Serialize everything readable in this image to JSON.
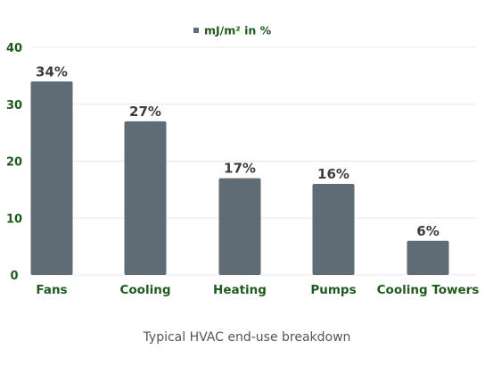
{
  "chart_data": {
    "type": "bar",
    "categories": [
      "Fans",
      "Cooling",
      "Heating",
      "Pumps",
      "Cooling Towers"
    ],
    "series": [
      {
        "name": "mJ/m² in %",
        "values": [
          34,
          27,
          17,
          16,
          6
        ]
      }
    ],
    "data_labels": [
      "34%",
      "27%",
      "17%",
      "16%",
      "6%"
    ],
    "y_ticks": [
      0,
      10,
      20,
      30,
      40
    ],
    "ylim": [
      0,
      40
    ],
    "grid": true,
    "legend_position": "top-center",
    "caption": "Typical HVAC end-use breakdown"
  },
  "colors": {
    "bar": "#5f6b75",
    "axis_label": "#1f5a1f",
    "value_label": "#3d3d3d",
    "grid": "#e8e8e8",
    "caption": "#555555"
  }
}
